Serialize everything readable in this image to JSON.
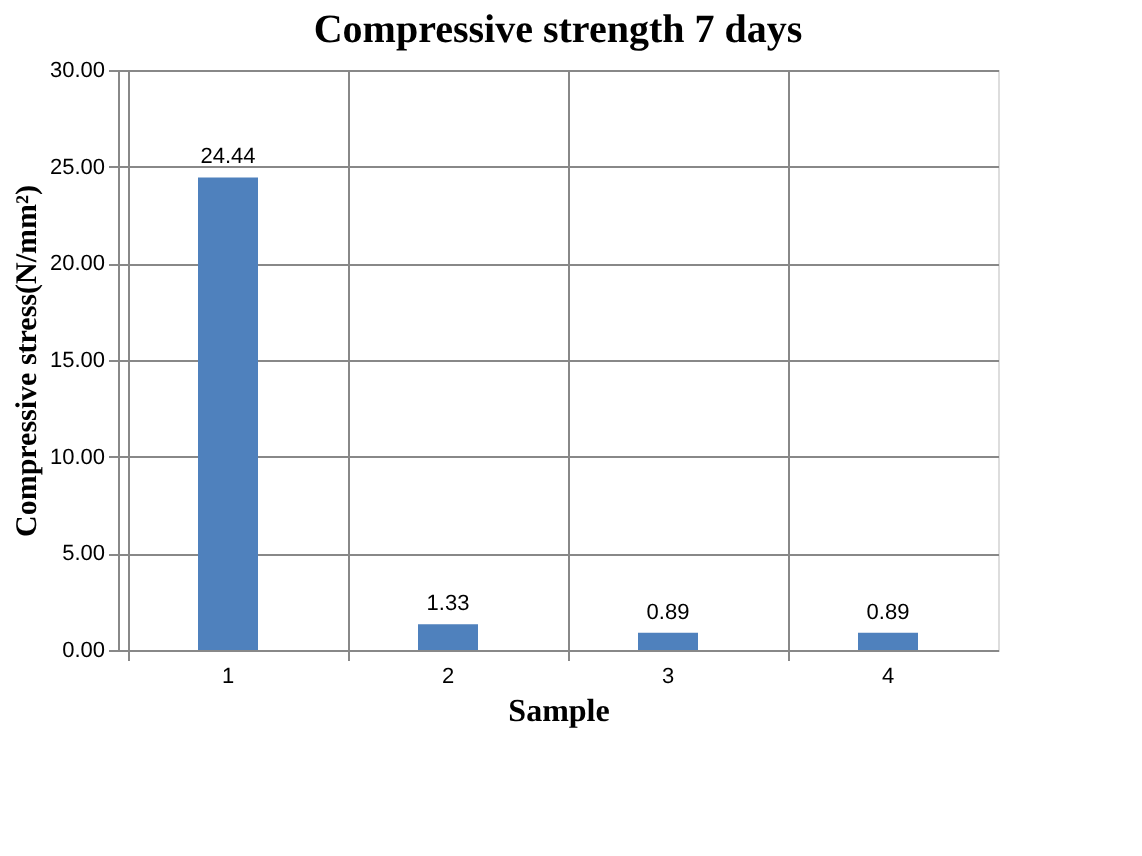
{
  "chart_data": {
    "type": "bar",
    "title": "Compressive strength 7 days",
    "xlabel": "Sample",
    "ylabel": "Compressive stress(N/mm²)",
    "categories": [
      "1",
      "2",
      "3",
      "4"
    ],
    "values": [
      24.44,
      1.33,
      0.89,
      0.89
    ],
    "color": "#4f81bd",
    "ylim": [
      0,
      30
    ],
    "yticks": [
      {
        "value": 0,
        "label": "0.00"
      },
      {
        "value": 5,
        "label": "5.00"
      },
      {
        "value": 10,
        "label": "10.00"
      },
      {
        "value": 15,
        "label": "15.00"
      },
      {
        "value": 20,
        "label": "20.00"
      },
      {
        "value": 25,
        "label": "25.00"
      },
      {
        "value": 30,
        "label": "30.00"
      }
    ],
    "grid": true,
    "data_labels": true
  }
}
